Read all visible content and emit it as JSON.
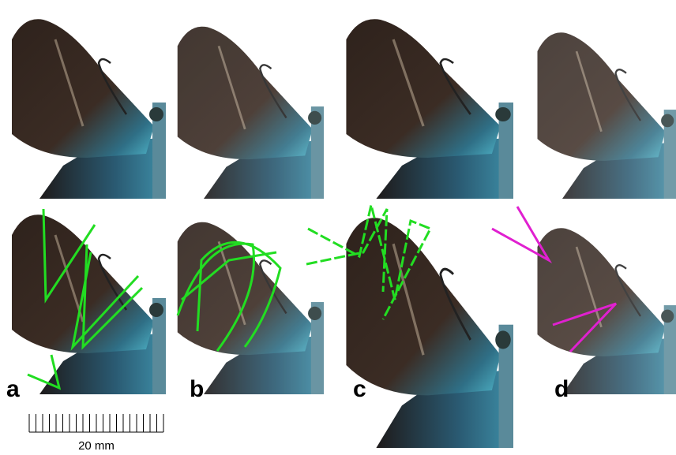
{
  "panels": [
    {
      "label": "a"
    },
    {
      "label": "b"
    },
    {
      "label": "c"
    },
    {
      "label": "d"
    }
  ],
  "scale_bar": {
    "label": "20 mm"
  }
}
